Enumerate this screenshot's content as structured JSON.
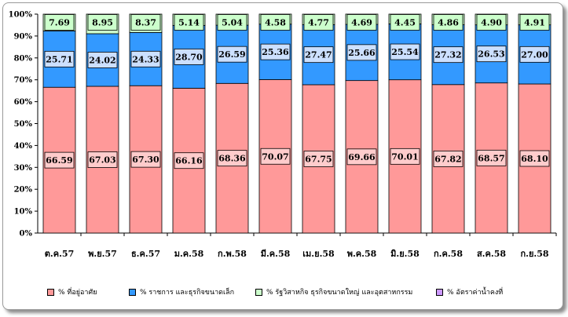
{
  "chart_data": {
    "type": "bar",
    "stacked": true,
    "percent": true,
    "categories": [
      "ต.ค.57",
      "พ.ย.57",
      "ธ.ค.57",
      "ม.ค.58",
      "ก.พ.58",
      "มี.ค.58",
      "เม.ย.58",
      "พ.ค.58",
      "มิ.ย.58",
      "ก.ค.58",
      "ส.ค.58",
      "ก.ย.58"
    ],
    "ylim": [
      0,
      100
    ],
    "yticks": [
      "0%",
      "10%",
      "20%",
      "30%",
      "40%",
      "50%",
      "60%",
      "70%",
      "80%",
      "90%",
      "100%"
    ],
    "grid": false,
    "legend_position": "bottom",
    "series": [
      {
        "name": "% ที่อยู่อาศัย",
        "color": "#FF9999",
        "labelbg": "#FFCCCC",
        "values": [
          66.59,
          67.03,
          67.3,
          66.16,
          68.36,
          70.07,
          67.75,
          69.66,
          70.01,
          67.82,
          68.57,
          68.1
        ],
        "labels": [
          "66.59",
          "67.03",
          "67.30",
          "66.16",
          "68.36",
          "70.07",
          "67.75",
          "69.66",
          "70.01",
          "67.82",
          "68.57",
          "68.10"
        ]
      },
      {
        "name": "% ราชการ และธุรกิจขนาดเล็ก",
        "color": "#3399FF",
        "labelbg": "#CCE0FF",
        "values": [
          25.71,
          24.02,
          24.33,
          28.7,
          26.59,
          25.36,
          27.47,
          25.66,
          25.54,
          27.32,
          26.53,
          27.0
        ],
        "labels": [
          "25.71",
          "24.02",
          "24.33",
          "28.70",
          "26.59",
          "25.36",
          "27.47",
          "25.66",
          "25.54",
          "27.32",
          "26.53",
          "27.00"
        ]
      },
      {
        "name": "% รัฐวิสาหกิจ ธุรกิจขนาดใหญ่ และอุตสาหกรรม",
        "color": "#CCFFCC",
        "labelbg": "#CCFFCC",
        "values": [
          7.69,
          8.95,
          8.37,
          5.14,
          5.04,
          4.58,
          4.77,
          4.69,
          4.45,
          4.86,
          4.9,
          4.91
        ],
        "labels": [
          "7.69",
          "8.95",
          "8.37",
          "5.14",
          "5.04",
          "4.58",
          "4.77",
          "4.69",
          "4.45",
          "4.86",
          "4.90",
          "4.91"
        ]
      },
      {
        "name": "% อัตราค่าน้ำคงที่",
        "color": "#CC99FF",
        "labelbg": "#CC99FF",
        "values": [
          0,
          0,
          0,
          0,
          0,
          0,
          0,
          0,
          0,
          0,
          0,
          0
        ],
        "labels": []
      }
    ]
  }
}
